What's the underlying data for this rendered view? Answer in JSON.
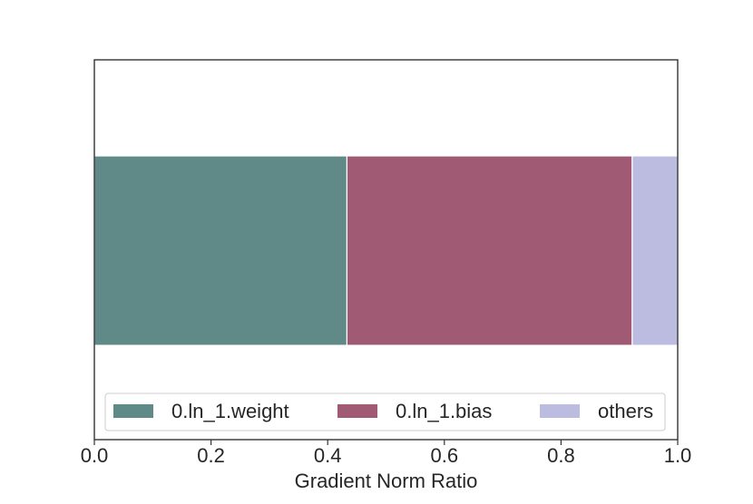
{
  "chart_data": {
    "type": "bar",
    "orientation": "horizontal",
    "stacked": true,
    "categories": [
      ""
    ],
    "series": [
      {
        "name": "0.ln_1.weight",
        "values": [
          0.433
        ],
        "color": "#5f8a87"
      },
      {
        "name": "0.ln_1.bias",
        "values": [
          0.489
        ],
        "color": "#a05a74"
      },
      {
        "name": "others",
        "values": [
          0.078
        ],
        "color": "#bbbcdf"
      }
    ],
    "title": "",
    "xlabel": "Gradient Norm Ratio",
    "ylabel": "",
    "xlim": [
      0.0,
      1.0
    ],
    "xticks": [
      "0.0",
      "0.2",
      "0.4",
      "0.6",
      "0.8",
      "1.0"
    ],
    "grid": false,
    "legend": {
      "placement": "lower-center",
      "ncol": 3
    },
    "frame_color": "#333333"
  }
}
